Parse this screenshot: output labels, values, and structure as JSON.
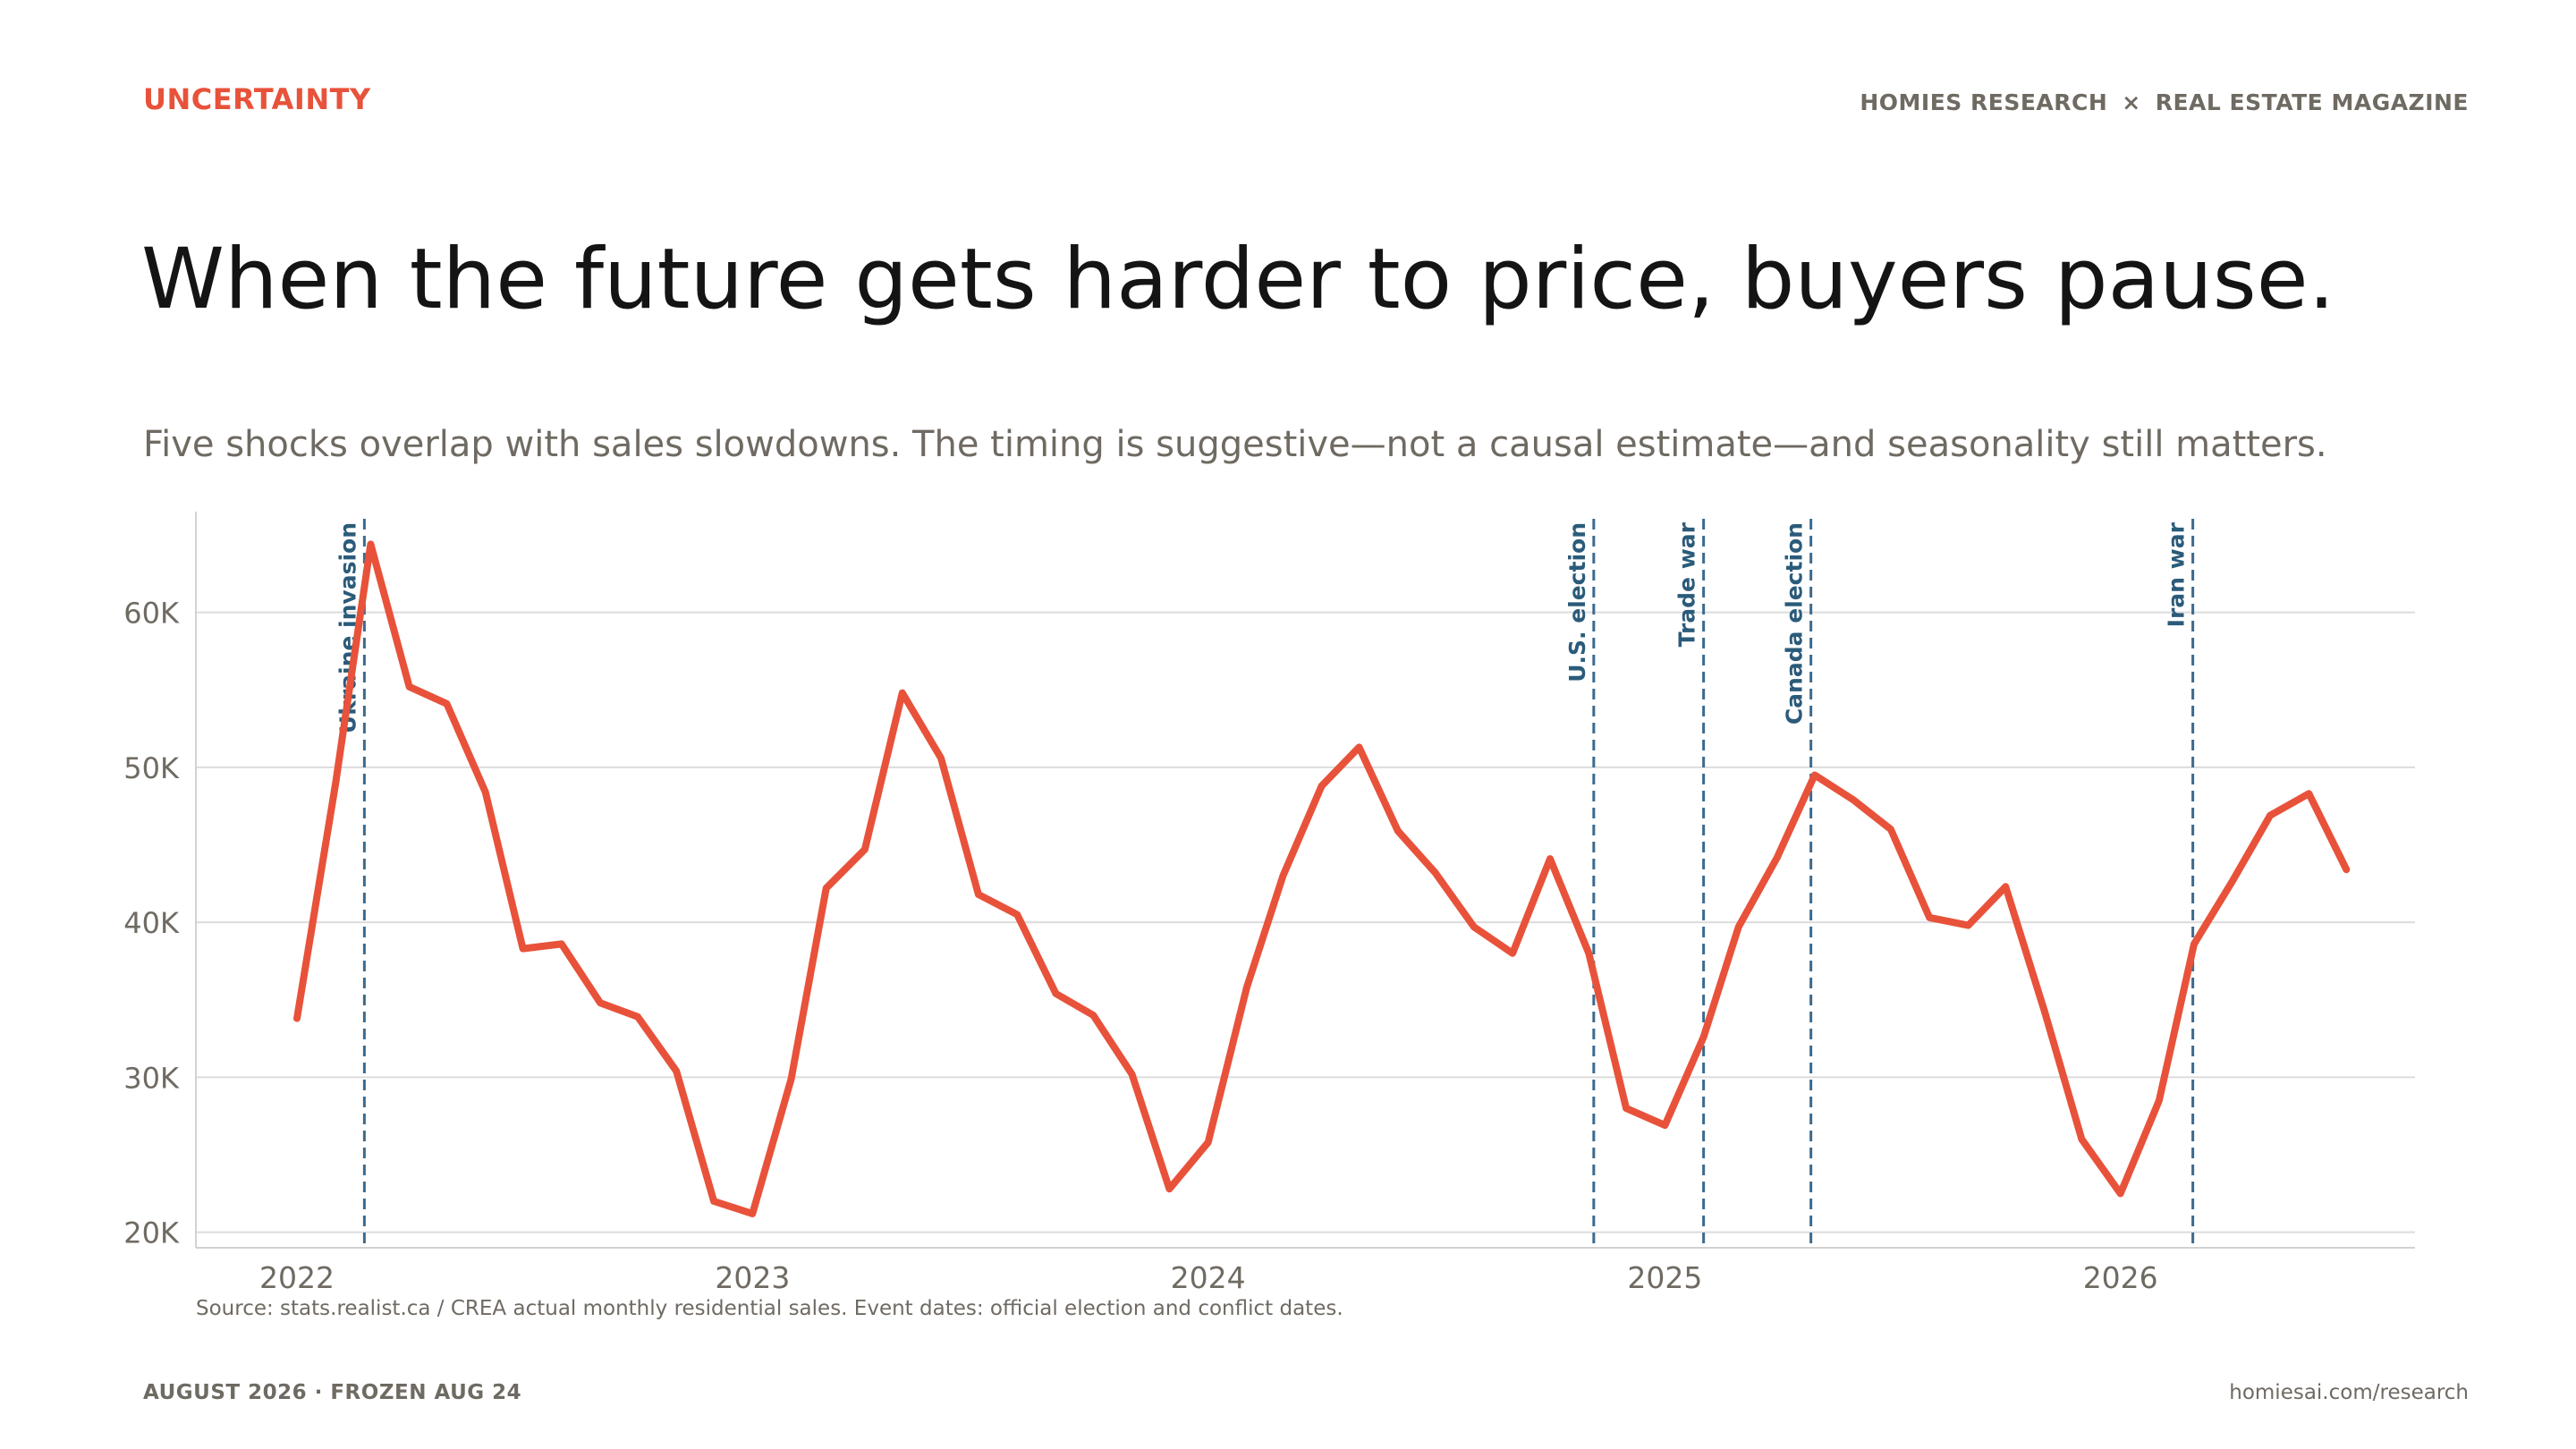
{
  "header": {
    "eyebrow": "UNCERTAINTY",
    "brand_left": "HOMIES RESEARCH",
    "brand_separator": "×",
    "brand_right": "REAL ESTATE MAGAZINE"
  },
  "title": "When the future gets harder to price, buyers pause.",
  "subtitle": "Five shocks overlap with sales slowdowns. The timing is suggestive—not a causal estimate—and seasonality still matters.",
  "source": "Source: stats.realist.ca / CREA actual monthly residential sales. Event dates: official election and conflict dates.",
  "footer": {
    "left": "AUGUST 2026 · FROZEN AUG 24",
    "right": "homiesai.com/research"
  },
  "colors": {
    "accent": "#e8523a",
    "event": "#3c6a8e",
    "event_label": "#2b5b7a",
    "grid": "#dcdcdc",
    "muted": "#6f6a62"
  },
  "chart_data": {
    "type": "line",
    "title": "",
    "xlabel": "",
    "ylabel": "",
    "x_ticks": [
      "2022",
      "2023",
      "2024",
      "2025",
      "2026"
    ],
    "y_ticks": [
      "20K",
      "30K",
      "40K",
      "50K",
      "60K"
    ],
    "y_tick_values": [
      20000,
      30000,
      40000,
      50000,
      60000
    ],
    "ylim": [
      19000,
      66500
    ],
    "xlim": [
      "2021-10-12",
      "2026-08-25"
    ],
    "grid": "horizontal",
    "series": [
      {
        "color": "#e8523a",
        "x": [
          "2022-01",
          "2022-02",
          "2022-03",
          "2022-04",
          "2022-05",
          "2022-06",
          "2022-07",
          "2022-08",
          "2022-09",
          "2022-10",
          "2022-11",
          "2022-12",
          "2023-01",
          "2023-02",
          "2023-03",
          "2023-04",
          "2023-05",
          "2023-06",
          "2023-07",
          "2023-08",
          "2023-09",
          "2023-10",
          "2023-11",
          "2023-12",
          "2024-01",
          "2024-02",
          "2024-03",
          "2024-04",
          "2024-05",
          "2024-06",
          "2024-07",
          "2024-08",
          "2024-09",
          "2024-10",
          "2024-11",
          "2024-12",
          "2025-01",
          "2025-02",
          "2025-03",
          "2025-04",
          "2025-05",
          "2025-06",
          "2025-07",
          "2025-08",
          "2025-09",
          "2025-10",
          "2025-11",
          "2025-12",
          "2026-01",
          "2026-02",
          "2026-03",
          "2026-04",
          "2026-05",
          "2026-06",
          "2026-07"
        ],
        "values": [
          33800,
          49000,
          64400,
          55200,
          54100,
          48400,
          38300,
          38600,
          34800,
          33900,
          30400,
          22000,
          21200,
          29900,
          42200,
          44700,
          54800,
          50600,
          41800,
          40500,
          35400,
          34000,
          30200,
          22800,
          25800,
          35800,
          43000,
          48800,
          51300,
          45900,
          43200,
          39700,
          38000,
          44100,
          38000,
          28000,
          26900,
          32600,
          39700,
          44200,
          49500,
          47900,
          46000,
          40300,
          39800,
          42300,
          34300,
          26000,
          22500,
          28500,
          38600,
          42700,
          46900,
          48300,
          43400
        ]
      }
    ],
    "events": [
      {
        "label": "Ukraine invasion",
        "date": "2022-02-24"
      },
      {
        "label": "U.S. election",
        "date": "2024-11-05"
      },
      {
        "label": "Trade war",
        "date": "2025-02-01"
      },
      {
        "label": "Canada election",
        "date": "2025-04-28"
      },
      {
        "label": "Iran war",
        "date": "2026-02-28"
      }
    ]
  }
}
